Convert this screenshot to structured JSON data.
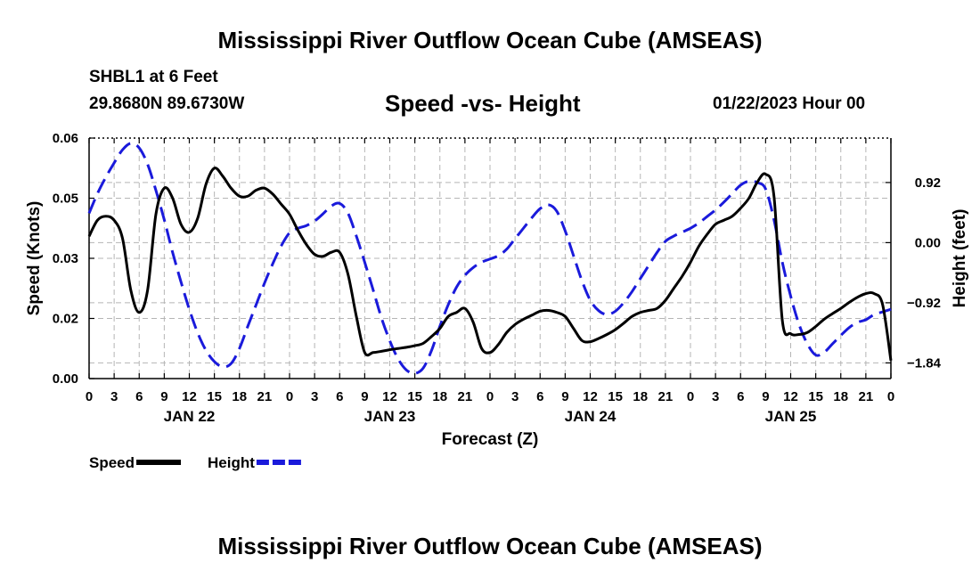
{
  "header": {
    "title": "Mississippi River Outflow Ocean Cube (AMSEAS)",
    "station": "SHBL1 at 6 Feet",
    "coords": "29.8680N  89.6730W",
    "subtitle": "Speed -vs- Height",
    "datetime": "01/22/2023 Hour 00",
    "footer_title": "Mississippi River Outflow Ocean Cube (AMSEAS)"
  },
  "chart_data": {
    "type": "line",
    "title": "Speed -vs- Height",
    "xlabel": "Forecast (Z)",
    "ylabel": "Speed (Knots)",
    "y2label": "Height (feet)",
    "x_hours_range": [
      0,
      96
    ],
    "ylim": [
      0,
      0.06
    ],
    "y2lim": [
      -2.08,
      1.6
    ],
    "grid": true,
    "x_tick_labels": [
      "0",
      "3",
      "6",
      "9",
      "12",
      "15",
      "18",
      "21",
      "0",
      "3",
      "6",
      "9",
      "12",
      "15",
      "18",
      "21",
      "0",
      "3",
      "6",
      "9",
      "12",
      "15",
      "18",
      "21",
      "0",
      "3",
      "6",
      "9",
      "12",
      "15",
      "18",
      "21",
      "0"
    ],
    "date_labels": [
      {
        "label": "JAN 22",
        "hour": 12
      },
      {
        "label": "JAN 23",
        "hour": 36
      },
      {
        "label": "JAN 24",
        "hour": 60
      },
      {
        "label": "JAN 25",
        "hour": 84
      }
    ],
    "y_ticks": [
      {
        "value": 0,
        "label": "0.00"
      },
      {
        "value": 0.015,
        "label": "0.02"
      },
      {
        "value": 0.03,
        "label": "0.03"
      },
      {
        "value": 0.045,
        "label": "0.05"
      },
      {
        "value": 0.06,
        "label": "0.06"
      }
    ],
    "y2_ticks": [
      {
        "value": 0.92,
        "label": "0.92"
      },
      {
        "value": 0,
        "label": "0.00"
      },
      {
        "value": -0.92,
        "label": "−0.92"
      },
      {
        "value": -1.84,
        "label": "−1.84"
      }
    ],
    "series": [
      {
        "name": "Speed",
        "axis": "left",
        "color": "#000000",
        "style": "solid",
        "points": [
          [
            0,
            0.0355
          ],
          [
            1,
            0.0395
          ],
          [
            2,
            0.0405
          ],
          [
            3,
            0.0395
          ],
          [
            4,
            0.035
          ],
          [
            5,
            0.022
          ],
          [
            6,
            0.0165
          ],
          [
            7,
            0.022
          ],
          [
            8,
            0.041
          ],
          [
            9,
            0.0475
          ],
          [
            10,
            0.045
          ],
          [
            11,
            0.0385
          ],
          [
            12,
            0.0365
          ],
          [
            13,
            0.04
          ],
          [
            14,
            0.0485
          ],
          [
            15,
            0.0525
          ],
          [
            16,
            0.0505
          ],
          [
            17,
            0.0475
          ],
          [
            18,
            0.0455
          ],
          [
            19,
            0.0455
          ],
          [
            20,
            0.047
          ],
          [
            21,
            0.0475
          ],
          [
            22,
            0.046
          ],
          [
            23,
            0.0435
          ],
          [
            24,
            0.041
          ],
          [
            25,
            0.037
          ],
          [
            26,
            0.0335
          ],
          [
            27,
            0.031
          ],
          [
            28,
            0.0305
          ],
          [
            29,
            0.0315
          ],
          [
            30,
            0.0315
          ],
          [
            31,
            0.026
          ],
          [
            32,
            0.0155
          ],
          [
            33,
            0.0065
          ],
          [
            34,
            0.0065
          ],
          [
            35,
            0.0068
          ],
          [
            36,
            0.0072
          ],
          [
            37,
            0.0075
          ],
          [
            38,
            0.0078
          ],
          [
            39,
            0.0082
          ],
          [
            40,
            0.0088
          ],
          [
            41,
            0.0105
          ],
          [
            42,
            0.0125
          ],
          [
            43,
            0.0155
          ],
          [
            44,
            0.0165
          ],
          [
            45,
            0.0175
          ],
          [
            46,
            0.014
          ],
          [
            47,
            0.0075
          ],
          [
            48,
            0.0065
          ],
          [
            49,
            0.0085
          ],
          [
            50,
            0.0115
          ],
          [
            51,
            0.0135
          ],
          [
            52,
            0.0148
          ],
          [
            53,
            0.0158
          ],
          [
            54,
            0.0168
          ],
          [
            55,
            0.017
          ],
          [
            56,
            0.0165
          ],
          [
            57,
            0.0155
          ],
          [
            58,
            0.0125
          ],
          [
            59,
            0.0095
          ],
          [
            60,
            0.0092
          ],
          [
            61,
            0.01
          ],
          [
            62,
            0.011
          ],
          [
            63,
            0.0122
          ],
          [
            64,
            0.0138
          ],
          [
            65,
            0.0155
          ],
          [
            66,
            0.0165
          ],
          [
            67,
            0.017
          ],
          [
            68,
            0.0175
          ],
          [
            69,
            0.0195
          ],
          [
            70,
            0.0225
          ],
          [
            71,
            0.0255
          ],
          [
            72,
            0.029
          ],
          [
            73,
            0.033
          ],
          [
            74,
            0.036
          ],
          [
            75,
            0.0385
          ],
          [
            76,
            0.0395
          ],
          [
            77,
            0.0405
          ],
          [
            78,
            0.0425
          ],
          [
            79,
            0.045
          ],
          [
            80,
            0.049
          ],
          [
            81,
            0.051
          ],
          [
            82,
            0.0455
          ],
          [
            83,
            0.0145
          ],
          [
            84,
            0.0112
          ],
          [
            85,
            0.011
          ],
          [
            86,
            0.0115
          ],
          [
            87,
            0.013
          ],
          [
            88,
            0.0148
          ],
          [
            89,
            0.0162
          ],
          [
            90,
            0.0175
          ],
          [
            91,
            0.019
          ],
          [
            92,
            0.0203
          ],
          [
            93,
            0.0212
          ],
          [
            94,
            0.0212
          ],
          [
            95,
            0.0185
          ],
          [
            96,
            0.0045
          ]
        ]
      },
      {
        "name": "Height",
        "axis": "right",
        "color": "#1a1adb",
        "style": "dashed",
        "points": [
          [
            0,
            0.45
          ],
          [
            1,
            0.75
          ],
          [
            2,
            1.0
          ],
          [
            3,
            1.22
          ],
          [
            4,
            1.42
          ],
          [
            5,
            1.52
          ],
          [
            6,
            1.45
          ],
          [
            7,
            1.2
          ],
          [
            8,
            0.8
          ],
          [
            9,
            0.35
          ],
          [
            10,
            -0.15
          ],
          [
            11,
            -0.6
          ],
          [
            12,
            -1.02
          ],
          [
            13,
            -1.38
          ],
          [
            14,
            -1.65
          ],
          [
            15,
            -1.82
          ],
          [
            16,
            -1.9
          ],
          [
            17,
            -1.85
          ],
          [
            18,
            -1.62
          ],
          [
            19,
            -1.28
          ],
          [
            20,
            -0.95
          ],
          [
            21,
            -0.62
          ],
          [
            22,
            -0.32
          ],
          [
            23,
            -0.05
          ],
          [
            24,
            0.15
          ],
          [
            25,
            0.22
          ],
          [
            26,
            0.26
          ],
          [
            27,
            0.33
          ],
          [
            28,
            0.44
          ],
          [
            29,
            0.56
          ],
          [
            30,
            0.6
          ],
          [
            31,
            0.45
          ],
          [
            32,
            0.1
          ],
          [
            33,
            -0.3
          ],
          [
            34,
            -0.72
          ],
          [
            35,
            -1.15
          ],
          [
            36,
            -1.5
          ],
          [
            37,
            -1.78
          ],
          [
            38,
            -1.95
          ],
          [
            39,
            -2.0
          ],
          [
            40,
            -1.92
          ],
          [
            41,
            -1.65
          ],
          [
            42,
            -1.28
          ],
          [
            43,
            -0.95
          ],
          [
            44,
            -0.68
          ],
          [
            45,
            -0.5
          ],
          [
            46,
            -0.38
          ],
          [
            47,
            -0.3
          ],
          [
            48,
            -0.25
          ],
          [
            49,
            -0.2
          ],
          [
            50,
            -0.1
          ],
          [
            51,
            0.06
          ],
          [
            52,
            0.22
          ],
          [
            53,
            0.38
          ],
          [
            54,
            0.52
          ],
          [
            55,
            0.58
          ],
          [
            56,
            0.48
          ],
          [
            57,
            0.18
          ],
          [
            58,
            -0.2
          ],
          [
            59,
            -0.58
          ],
          [
            60,
            -0.88
          ],
          [
            61,
            -1.04
          ],
          [
            62,
            -1.1
          ],
          [
            63,
            -1.05
          ],
          [
            64,
            -0.92
          ],
          [
            65,
            -0.75
          ],
          [
            66,
            -0.55
          ],
          [
            67,
            -0.35
          ],
          [
            68,
            -0.15
          ],
          [
            69,
            0.02
          ],
          [
            70,
            0.1
          ],
          [
            71,
            0.16
          ],
          [
            72,
            0.22
          ],
          [
            73,
            0.3
          ],
          [
            74,
            0.4
          ],
          [
            75,
            0.5
          ],
          [
            76,
            0.62
          ],
          [
            77,
            0.75
          ],
          [
            78,
            0.88
          ],
          [
            79,
            0.94
          ],
          [
            80,
            0.92
          ],
          [
            81,
            0.82
          ],
          [
            82,
            0.35
          ],
          [
            83,
            -0.3
          ],
          [
            84,
            -0.82
          ],
          [
            85,
            -1.25
          ],
          [
            86,
            -1.55
          ],
          [
            87,
            -1.72
          ],
          [
            88,
            -1.68
          ],
          [
            89,
            -1.55
          ],
          [
            90,
            -1.42
          ],
          [
            91,
            -1.3
          ],
          [
            92,
            -1.22
          ],
          [
            93,
            -1.18
          ],
          [
            94,
            -1.1
          ],
          [
            95,
            -1.06
          ],
          [
            96,
            -1.02
          ]
        ]
      }
    ],
    "legend": [
      {
        "label": "Speed",
        "color": "#000000",
        "style": "solid"
      },
      {
        "label": "Height",
        "color": "#1a1adb",
        "style": "dashed"
      }
    ]
  }
}
